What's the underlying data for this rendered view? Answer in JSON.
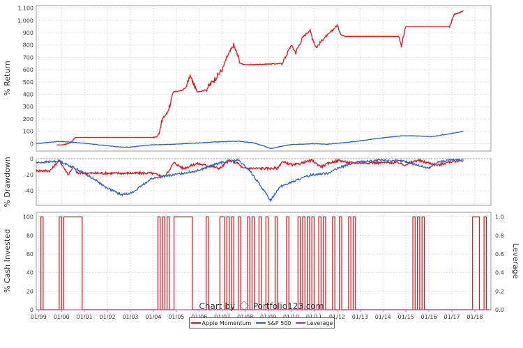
{
  "colors": {
    "strategy": "#e8111a",
    "benchmark": "#2e5fc3",
    "leverage": "#9b30b0",
    "grid": "#dddddd"
  },
  "footer": {
    "prefix": "Chart by",
    "brand": "Portfolio123.com"
  },
  "legend": [
    {
      "label": "Apple Momentum",
      "color": "#e8111a"
    },
    {
      "label": "S&P 500",
      "color": "#2e5fc3"
    },
    {
      "label": "Leverage",
      "color": "#9b30b0"
    }
  ],
  "chart_data": [
    {
      "type": "line",
      "ylabel": "% Return",
      "ylim": [
        -60,
        1120
      ],
      "yticks": [
        0,
        100,
        200,
        300,
        400,
        500,
        600,
        700,
        800,
        900,
        1000,
        1100
      ],
      "ytick_labels": [
        "0",
        "100",
        "200",
        "300",
        "400",
        "500",
        "600",
        "700",
        "800",
        "900",
        "1,000",
        "1,100"
      ],
      "xlim": [
        1999.0,
        2018.8
      ],
      "grid": true,
      "series": [
        {
          "name": "Apple Momentum",
          "x": [
            1999.9,
            2000.2,
            2000.5,
            2000.7,
            2000.8,
            2004.1,
            2004.3,
            2004.5,
            2004.7,
            2005.0,
            2005.3,
            2005.5,
            2005.7,
            2006.0,
            2006.3,
            2006.4,
            2007.1,
            2007.3,
            2007.6,
            2007.9,
            2008.1,
            2008.3,
            2009.7,
            2009.9,
            2010.1,
            2010.3,
            2010.6,
            2010.9,
            2011.2,
            2011.5,
            2011.8,
            2012.1,
            2012.3,
            2012.5,
            2014.8,
            2014.9,
            2015.1,
            2015.3,
            2017.0,
            2017.2,
            2017.4,
            2017.6
          ],
          "y": [
            -10,
            -10,
            10,
            50,
            50,
            50,
            60,
            200,
            250,
            420,
            430,
            450,
            550,
            420,
            430,
            440,
            600,
            700,
            800,
            650,
            640,
            640,
            650,
            720,
            800,
            740,
            860,
            920,
            780,
            850,
            900,
            960,
            880,
            870,
            870,
            800,
            950,
            950,
            950,
            1050,
            1060,
            1080
          ]
        },
        {
          "name": "S&P 500",
          "x": [
            1999.0,
            1999.5,
            2000.0,
            2000.7,
            2001.5,
            2002.5,
            2003.0,
            2004.0,
            2005.0,
            2006.0,
            2007.0,
            2007.8,
            2008.5,
            2009.0,
            2009.2,
            2010.0,
            2011.0,
            2011.7,
            2012.5,
            2013.0,
            2014.0,
            2015.0,
            2016.0,
            2016.2,
            2017.0,
            2017.6
          ],
          "y": [
            0,
            10,
            18,
            10,
            -5,
            -25,
            -30,
            -10,
            -5,
            5,
            15,
            20,
            5,
            -25,
            -40,
            -10,
            0,
            -5,
            10,
            20,
            45,
            65,
            60,
            55,
            80,
            100
          ]
        }
      ]
    },
    {
      "type": "line",
      "ylabel": "% Drawdown",
      "ylim": [
        -58,
        0
      ],
      "yticks": [
        0,
        -20,
        -40
      ],
      "ytick_labels": [
        "0",
        "-20",
        "-40"
      ],
      "xlim": [
        1999.0,
        2018.8
      ],
      "grid": true,
      "series": [
        {
          "name": "Apple Momentum",
          "x": [
            1999.0,
            1999.6,
            2000.0,
            2000.4,
            2000.6,
            2000.8,
            2004.0,
            2004.6,
            2005.0,
            2005.4,
            2006.0,
            2007.0,
            2007.4,
            2007.8,
            2008.0,
            2009.5,
            2009.7,
            2010.2,
            2011.0,
            2011.4,
            2011.8,
            2012.2,
            2012.6,
            2014.8,
            2015.0,
            2015.6,
            2016.5,
            2017.0,
            2017.6
          ],
          "y": [
            -15,
            -15,
            -2,
            -20,
            -10,
            -18,
            -18,
            -22,
            -5,
            -12,
            -6,
            -12,
            -2,
            -6,
            -12,
            -12,
            -4,
            -8,
            -2,
            -10,
            -5,
            -2,
            -5,
            -5,
            -8,
            -2,
            -8,
            -4,
            -2
          ]
        },
        {
          "name": "S&P 500",
          "x": [
            1999.0,
            2000.0,
            2000.7,
            2001.5,
            2002.0,
            2002.7,
            2003.2,
            2004.0,
            2005.0,
            2006.0,
            2007.0,
            2007.8,
            2008.3,
            2008.8,
            2009.2,
            2009.6,
            2010.5,
            2011.0,
            2011.7,
            2012.3,
            2013.0,
            2014.0,
            2015.0,
            2015.6,
            2016.1,
            2016.5,
            2017.0,
            2017.6
          ],
          "y": [
            -5,
            -3,
            -12,
            -25,
            -35,
            -45,
            -42,
            -25,
            -20,
            -15,
            -5,
            -2,
            -15,
            -35,
            -52,
            -35,
            -25,
            -20,
            -18,
            -10,
            -4,
            -2,
            -3,
            -8,
            -12,
            -4,
            -2,
            -1
          ]
        }
      ]
    },
    {
      "type": "line",
      "ylabel": "% Cash Invested",
      "y2label": "Leverage",
      "ylim": [
        0,
        105
      ],
      "yticks": [
        0,
        20,
        40,
        60,
        80,
        100
      ],
      "ytick_labels": [
        "0",
        "20",
        "40",
        "60",
        "80",
        "100"
      ],
      "y2lim": [
        0,
        1.05
      ],
      "y2ticks": [
        0,
        0.2,
        0.4,
        0.6,
        0.8,
        1.0
      ],
      "y2tick_labels": [
        "0.0",
        "0.2",
        "0.4",
        "0.6",
        "0.8",
        "1.0"
      ],
      "xlim": [
        1999.0,
        2018.8
      ],
      "xticks": [
        1999.1,
        2000.1,
        2001.1,
        2002.1,
        2003.1,
        2004.1,
        2005.1,
        2006.1,
        2007.1,
        2008.1,
        2009.1,
        2010.1,
        2011.1,
        2012.1,
        2013.1,
        2014.1,
        2015.1,
        2016.1,
        2017.1,
        2018.1
      ],
      "xtick_labels": [
        "01/99",
        "01/00",
        "01/01",
        "01/02",
        "01/03",
        "01/04",
        "01/05",
        "01/06",
        "01/07",
        "01/08",
        "01/09",
        "01/10",
        "01/11",
        "01/12",
        "01/13",
        "01/14",
        "01/15",
        "01/16",
        "01/17",
        "01/18"
      ],
      "grid": true,
      "series": [
        {
          "name": "Apple Momentum",
          "invested_periods": [
            [
              1999.2,
              1999.3
            ],
            [
              2000.0,
              2000.1
            ],
            [
              2000.2,
              2001.0
            ],
            [
              2004.3,
              2004.4
            ],
            [
              2004.5,
              2004.6
            ],
            [
              2004.7,
              2004.8
            ],
            [
              2005.0,
              2005.8
            ],
            [
              2006.4,
              2006.5
            ],
            [
              2007.0,
              2007.2
            ],
            [
              2007.3,
              2007.4
            ],
            [
              2007.5,
              2007.6
            ],
            [
              2007.8,
              2007.9
            ],
            [
              2008.2,
              2008.3
            ],
            [
              2008.4,
              2008.5
            ],
            [
              2008.7,
              2008.8
            ],
            [
              2009.0,
              2009.1
            ],
            [
              2009.4,
              2009.5
            ],
            [
              2009.9,
              2010.0
            ],
            [
              2010.4,
              2010.5
            ],
            [
              2010.6,
              2010.7
            ],
            [
              2010.8,
              2010.9
            ],
            [
              2011.0,
              2011.1
            ],
            [
              2011.3,
              2011.4
            ],
            [
              2011.5,
              2011.6
            ],
            [
              2011.9,
              2012.0
            ],
            [
              2012.2,
              2012.3
            ],
            [
              2012.6,
              2012.7
            ],
            [
              2012.8,
              2012.9
            ],
            [
              2015.4,
              2015.5
            ],
            [
              2015.6,
              2015.7
            ],
            [
              2015.8,
              2015.9
            ],
            [
              2018.0,
              2018.3
            ],
            [
              2018.5,
              2018.6
            ]
          ]
        },
        {
          "name": "Leverage",
          "x": [
            1999.0,
            2018.8
          ],
          "y": [
            0,
            0
          ]
        }
      ]
    }
  ]
}
